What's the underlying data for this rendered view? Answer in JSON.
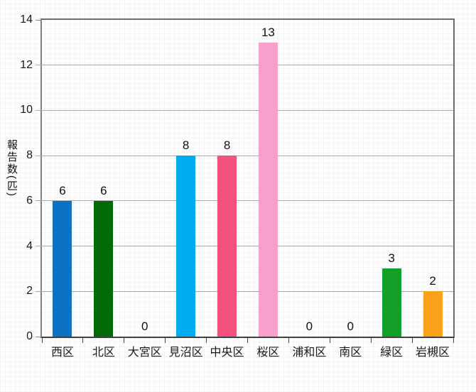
{
  "chart_data": {
    "type": "bar",
    "title": "",
    "xlabel": "",
    "ylabel": "報告数(匹)",
    "ylim": [
      0,
      14
    ],
    "yticks": [
      0,
      2,
      4,
      6,
      8,
      10,
      12,
      14
    ],
    "grid": true,
    "legend": "none",
    "categories": [
      "西区",
      "北区",
      "大宮区",
      "見沼区",
      "中央区",
      "桜区",
      "浦和区",
      "南区",
      "緑区",
      "岩槻区"
    ],
    "values": [
      6,
      6,
      0,
      8,
      8,
      13,
      0,
      0,
      3,
      2
    ],
    "data_labels": [
      "6",
      "6",
      "0",
      "8",
      "8",
      "13",
      "0",
      "0",
      "3",
      "2"
    ],
    "bar_colors": [
      "#0e72c3",
      "#036b06",
      null,
      "#00aeef",
      "#f4517f",
      "#f99fcb",
      null,
      null,
      "#12a02b",
      "#faa21a"
    ],
    "colors": {
      "gridline": "#a8a8a8",
      "plot_border": "#6e6e6e",
      "axis_left": "#848484",
      "axis_bottom": "#404040",
      "tick": "#4a4a4a",
      "text": "#1a1a1a"
    }
  }
}
